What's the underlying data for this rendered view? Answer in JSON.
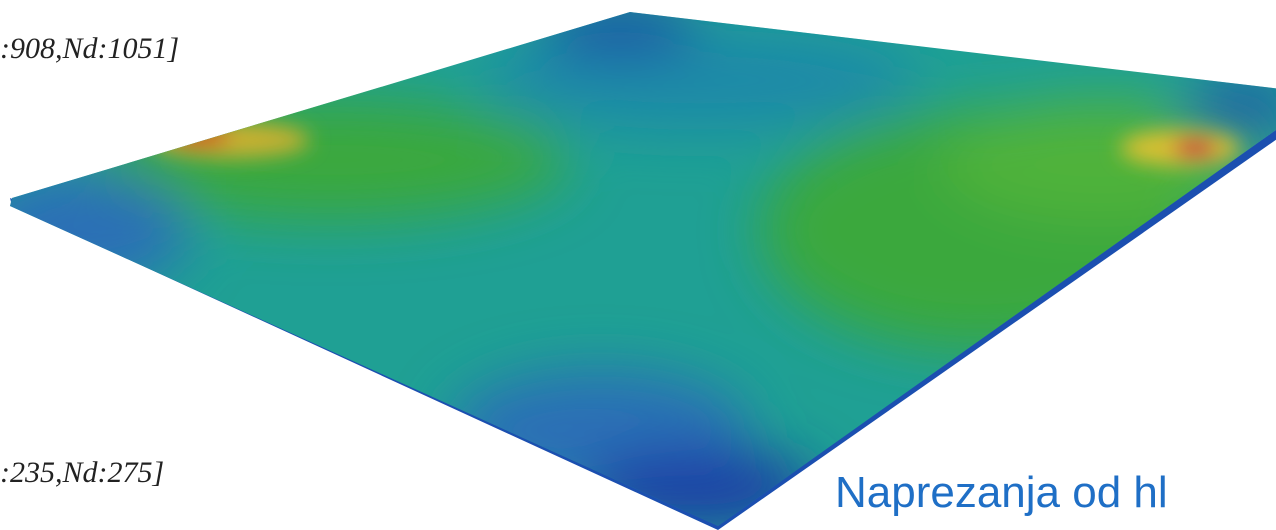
{
  "labels": {
    "top": ":908,Nd:1051]",
    "bottom": ":235,Nd:275]"
  },
  "caption": "Naprezanja od hl"
}
